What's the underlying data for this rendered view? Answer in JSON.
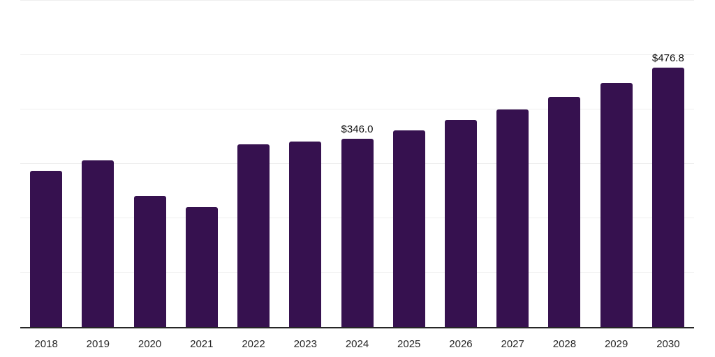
{
  "chart_data": {
    "type": "bar",
    "title": "",
    "xlabel": "",
    "ylabel": "",
    "categories": [
      "2018",
      "2019",
      "2020",
      "2021",
      "2022",
      "2023",
      "2024",
      "2025",
      "2026",
      "2027",
      "2028",
      "2029",
      "2030"
    ],
    "values": [
      287.3,
      306.5,
      241.2,
      220.7,
      336.3,
      340.5,
      346.0,
      361.9,
      380.3,
      399.8,
      422.5,
      448.6,
      476.8
    ],
    "data_labels": [
      "",
      "",
      "",
      "",
      "",
      "",
      "$346.0",
      "",
      "",
      "",
      "",
      "",
      "$476.8"
    ],
    "ylim": [
      0,
      600
    ],
    "gridline_step": 100,
    "grid": true,
    "legend": false,
    "colors": {
      "bar": "#36114f",
      "axis": "#262626",
      "gridline": "#efefef",
      "tick_label": "#262626",
      "data_label": "#111111",
      "background": "#ffffff"
    }
  }
}
